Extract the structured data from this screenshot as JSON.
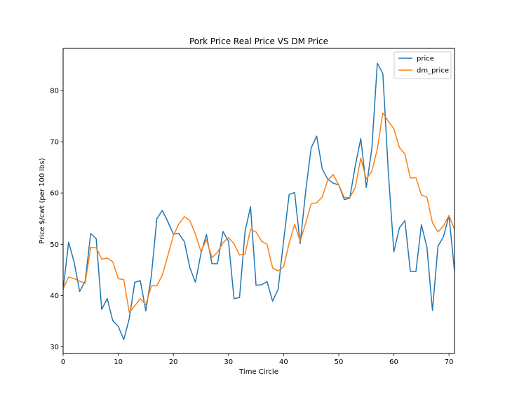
{
  "chart_data": {
    "type": "line",
    "title": "Pork Price Real Price VS DM Price",
    "xlabel": "Time Circle",
    "ylabel": "Price $/cwt (per 100 lbs)",
    "xlim": [
      0,
      71
    ],
    "ylim": [
      28.7,
      88.2
    ],
    "xticks": [
      0,
      10,
      20,
      30,
      40,
      50,
      60,
      70
    ],
    "yticks": [
      30,
      40,
      50,
      60,
      70,
      80
    ],
    "grid": false,
    "legend": "top-right",
    "x": [
      0,
      1,
      2,
      3,
      4,
      5,
      6,
      7,
      8,
      9,
      10,
      11,
      12,
      13,
      14,
      15,
      16,
      17,
      18,
      19,
      20,
      21,
      22,
      23,
      24,
      25,
      26,
      27,
      28,
      29,
      30,
      31,
      32,
      33,
      34,
      35,
      36,
      37,
      38,
      39,
      40,
      41,
      42,
      43,
      44,
      45,
      46,
      47,
      48,
      49,
      50,
      51,
      52,
      53,
      54,
      55,
      56,
      57,
      58,
      59,
      60,
      61,
      62,
      63,
      64,
      65,
      66,
      67,
      68,
      69,
      70,
      71
    ],
    "series": [
      {
        "name": "price",
        "color": "#1f77b4",
        "values": [
          41.2,
          50.4,
          46.5,
          40.8,
          42.8,
          52.1,
          51.1,
          37.3,
          39.4,
          35.1,
          34.0,
          31.4,
          35.5,
          42.6,
          42.9,
          37.0,
          43.8,
          55.0,
          56.6,
          54.4,
          52.0,
          52.1,
          50.5,
          45.4,
          42.6,
          48.2,
          51.9,
          46.2,
          46.2,
          52.5,
          50.6,
          39.4,
          39.6,
          52.5,
          57.3,
          42.0,
          42.1,
          42.7,
          38.9,
          41.2,
          50.7,
          59.7,
          60.1,
          50.1,
          60.3,
          68.8,
          71.1,
          64.7,
          62.7,
          61.9,
          61.6,
          58.7,
          59.0,
          65.3,
          70.6,
          61.1,
          68.6,
          85.3,
          83.3,
          64.0,
          48.5,
          53.2,
          54.6,
          44.7,
          44.7,
          53.8,
          49.4,
          37.1,
          49.6,
          51.5,
          55.6,
          44.8
        ]
      },
      {
        "name": "dm_price",
        "color": "#ff7f0e",
        "values": [
          41.3,
          43.6,
          43.3,
          42.8,
          42.4,
          49.4,
          49.3,
          47.1,
          47.3,
          46.6,
          43.3,
          43.1,
          36.7,
          38.0,
          39.4,
          38.2,
          41.9,
          41.9,
          44.0,
          47.8,
          51.7,
          54.0,
          55.4,
          54.6,
          52.0,
          48.6,
          50.9,
          47.4,
          48.4,
          50.3,
          51.3,
          50.1,
          47.9,
          48.1,
          52.9,
          52.4,
          50.6,
          50.0,
          45.4,
          44.8,
          45.6,
          50.2,
          53.9,
          50.6,
          54.1,
          57.9,
          58.1,
          59.2,
          62.5,
          63.6,
          61.6,
          59.1,
          59.1,
          61.1,
          66.8,
          62.7,
          64.2,
          68.6,
          75.6,
          74.0,
          72.5,
          68.9,
          67.6,
          62.9,
          63.0,
          59.6,
          59.2,
          54.2,
          52.4,
          53.6,
          55.6,
          52.9
        ]
      }
    ]
  }
}
